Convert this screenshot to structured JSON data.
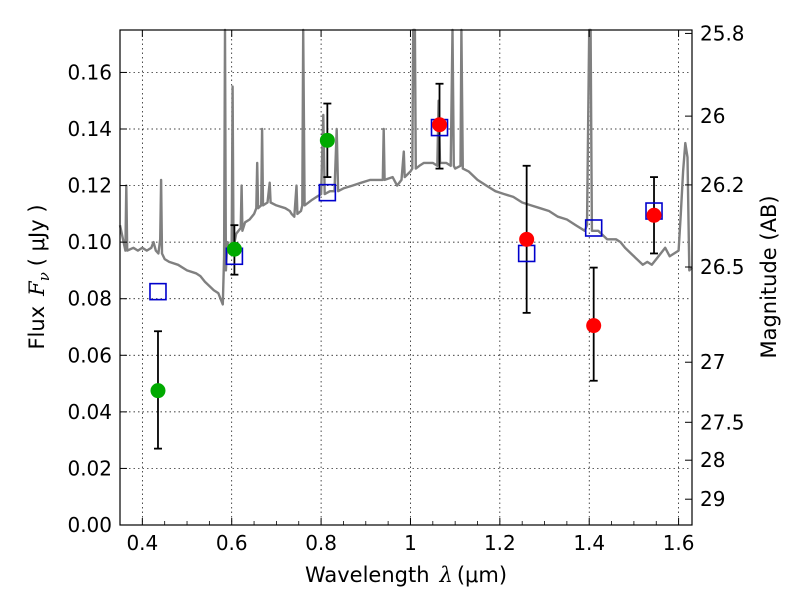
{
  "chart_data": {
    "type": "scatter",
    "xlabel_text": "Wavelength",
    "xlabel_symbol": "λ",
    "xlabel_unit": "(μm)",
    "ylabel_text": "Flux",
    "ylabel_symbol": "F",
    "ylabel_subscript": "ν",
    "ylabel_unit": "( μJy )",
    "ylabel_right": "Magnitude (AB)",
    "xlim": [
      0.35,
      1.63
    ],
    "ylim": [
      0.0,
      0.175
    ],
    "grid": true,
    "x_ticks": [
      {
        "value": 0.4,
        "label": "0.4"
      },
      {
        "value": 0.6,
        "label": "0.6"
      },
      {
        "value": 0.8,
        "label": "0.8"
      },
      {
        "value": 1.0,
        "label": "1"
      },
      {
        "value": 1.2,
        "label": "1.2"
      },
      {
        "value": 1.4,
        "label": "1.4"
      },
      {
        "value": 1.6,
        "label": "1.6"
      }
    ],
    "y_ticks": [
      {
        "value": 0.0,
        "label": "0.00"
      },
      {
        "value": 0.02,
        "label": "0.02"
      },
      {
        "value": 0.04,
        "label": "0.04"
      },
      {
        "value": 0.06,
        "label": "0.06"
      },
      {
        "value": 0.08,
        "label": "0.08"
      },
      {
        "value": 0.1,
        "label": "0.10"
      },
      {
        "value": 0.12,
        "label": "0.12"
      },
      {
        "value": 0.14,
        "label": "0.14"
      },
      {
        "value": 0.16,
        "label": "0.16"
      }
    ],
    "mag_ticks": [
      {
        "mag": 25.8,
        "label": "25.8"
      },
      {
        "mag": 26.0,
        "label": "26"
      },
      {
        "mag": 26.2,
        "label": "26.2"
      },
      {
        "mag": 26.5,
        "label": "26.5"
      },
      {
        "mag": 27.0,
        "label": "27"
      },
      {
        "mag": 27.5,
        "label": "27.5"
      },
      {
        "mag": 28.0,
        "label": "28"
      },
      {
        "mag": 29.0,
        "label": "29"
      }
    ],
    "colors": {
      "template": "#808080",
      "green": "#00aa00",
      "red": "#ff0000",
      "model": "#0000cc",
      "errorbar": "#000000"
    },
    "series": [
      {
        "style": "green-circle",
        "points": [
          {
            "x": 0.435,
            "y": 0.0475,
            "yerr_low": 0.027,
            "yerr_high": 0.0685
          },
          {
            "x": 0.606,
            "y": 0.0975,
            "yerr_low": 0.0885,
            "yerr_high": 0.106
          },
          {
            "x": 0.814,
            "y": 0.136,
            "yerr_low": 0.123,
            "yerr_high": 0.149
          }
        ]
      },
      {
        "style": "red-circle",
        "points": [
          {
            "x": 1.065,
            "y": 0.1415,
            "yerr_low": 0.126,
            "yerr_high": 0.156
          },
          {
            "x": 1.26,
            "y": 0.101,
            "yerr_low": 0.075,
            "yerr_high": 0.127
          },
          {
            "x": 1.41,
            "y": 0.0705,
            "yerr_low": 0.051,
            "yerr_high": 0.091
          },
          {
            "x": 1.545,
            "y": 0.1095,
            "yerr_low": 0.096,
            "yerr_high": 0.123
          }
        ]
      },
      {
        "style": "blue-square",
        "points": [
          {
            "x": 0.435,
            "y": 0.0825
          },
          {
            "x": 0.606,
            "y": 0.095
          },
          {
            "x": 0.814,
            "y": 0.1175
          },
          {
            "x": 1.065,
            "y": 0.1405
          },
          {
            "x": 1.26,
            "y": 0.096
          },
          {
            "x": 1.41,
            "y": 0.105
          },
          {
            "x": 1.545,
            "y": 0.111
          }
        ]
      },
      {
        "style": "gray-line",
        "points": [
          [
            0.35,
            0.106
          ],
          [
            0.358,
            0.1
          ],
          [
            0.362,
            0.097
          ],
          [
            0.364,
            0.12
          ],
          [
            0.366,
            0.097
          ],
          [
            0.38,
            0.098
          ],
          [
            0.39,
            0.097
          ],
          [
            0.4,
            0.098
          ],
          [
            0.41,
            0.097
          ],
          [
            0.42,
            0.098
          ],
          [
            0.425,
            0.1
          ],
          [
            0.43,
            0.097
          ],
          [
            0.436,
            0.096
          ],
          [
            0.44,
            0.101
          ],
          [
            0.442,
            0.122
          ],
          [
            0.444,
            0.096
          ],
          [
            0.45,
            0.094
          ],
          [
            0.46,
            0.093
          ],
          [
            0.48,
            0.092
          ],
          [
            0.5,
            0.09
          ],
          [
            0.52,
            0.089
          ],
          [
            0.53,
            0.088
          ],
          [
            0.54,
            0.086
          ],
          [
            0.56,
            0.083
          ],
          [
            0.57,
            0.082
          ],
          [
            0.575,
            0.08
          ],
          [
            0.58,
            0.078
          ],
          [
            0.583,
            0.095
          ],
          [
            0.585,
            0.175
          ],
          [
            0.587,
            0.09
          ],
          [
            0.59,
            0.1
          ],
          [
            0.595,
            0.097
          ],
          [
            0.6,
            0.1
          ],
          [
            0.602,
            0.155
          ],
          [
            0.604,
            0.098
          ],
          [
            0.61,
            0.103
          ],
          [
            0.62,
            0.105
          ],
          [
            0.622,
            0.12
          ],
          [
            0.624,
            0.104
          ],
          [
            0.63,
            0.107
          ],
          [
            0.64,
            0.108
          ],
          [
            0.65,
            0.11
          ],
          [
            0.655,
            0.112
          ],
          [
            0.657,
            0.128
          ],
          [
            0.659,
            0.112
          ],
          [
            0.666,
            0.113
          ],
          [
            0.668,
            0.14
          ],
          [
            0.67,
            0.113
          ],
          [
            0.68,
            0.114
          ],
          [
            0.685,
            0.121
          ],
          [
            0.687,
            0.114
          ],
          [
            0.7,
            0.113
          ],
          [
            0.72,
            0.112
          ],
          [
            0.73,
            0.111
          ],
          [
            0.734,
            0.11
          ],
          [
            0.74,
            0.109
          ],
          [
            0.745,
            0.12
          ],
          [
            0.747,
            0.11
          ],
          [
            0.755,
            0.111
          ],
          [
            0.758,
            0.113
          ],
          [
            0.76,
            0.175
          ],
          [
            0.763,
            0.113
          ],
          [
            0.78,
            0.115
          ],
          [
            0.79,
            0.116
          ],
          [
            0.8,
            0.117
          ],
          [
            0.805,
            0.145
          ],
          [
            0.808,
            0.117
          ],
          [
            0.82,
            0.118
          ],
          [
            0.83,
            0.118
          ],
          [
            0.835,
            0.14
          ],
          [
            0.838,
            0.118
          ],
          [
            0.85,
            0.119
          ],
          [
            0.87,
            0.12
          ],
          [
            0.89,
            0.121
          ],
          [
            0.91,
            0.122
          ],
          [
            0.93,
            0.122
          ],
          [
            0.938,
            0.122
          ],
          [
            0.94,
            0.14
          ],
          [
            0.942,
            0.122
          ],
          [
            0.96,
            0.123
          ],
          [
            0.97,
            0.12
          ],
          [
            0.98,
            0.122
          ],
          [
            0.985,
            0.132
          ],
          [
            0.987,
            0.123
          ],
          [
            1.0,
            0.125
          ],
          [
            1.004,
            0.126
          ],
          [
            1.006,
            0.175
          ],
          [
            1.01,
            0.175
          ],
          [
            1.012,
            0.126
          ],
          [
            1.02,
            0.127
          ],
          [
            1.03,
            0.128
          ],
          [
            1.05,
            0.128
          ],
          [
            1.06,
            0.127
          ],
          [
            1.063,
            0.15
          ],
          [
            1.066,
            0.128
          ],
          [
            1.08,
            0.128
          ],
          [
            1.09,
            0.127
          ],
          [
            1.094,
            0.175
          ],
          [
            1.097,
            0.127
          ],
          [
            1.1,
            0.126
          ],
          [
            1.112,
            0.127
          ],
          [
            1.114,
            0.175
          ],
          [
            1.117,
            0.126
          ],
          [
            1.13,
            0.125
          ],
          [
            1.15,
            0.122
          ],
          [
            1.17,
            0.12
          ],
          [
            1.19,
            0.118
          ],
          [
            1.21,
            0.117
          ],
          [
            1.23,
            0.116
          ],
          [
            1.25,
            0.114
          ],
          [
            1.27,
            0.113
          ],
          [
            1.29,
            0.112
          ],
          [
            1.31,
            0.111
          ],
          [
            1.33,
            0.109
          ],
          [
            1.35,
            0.108
          ],
          [
            1.37,
            0.106
          ],
          [
            1.39,
            0.104
          ],
          [
            1.395,
            0.106
          ],
          [
            1.4,
            0.175
          ],
          [
            1.403,
            0.175
          ],
          [
            1.406,
            0.104
          ],
          [
            1.42,
            0.104
          ],
          [
            1.44,
            0.101
          ],
          [
            1.46,
            0.101
          ],
          [
            1.47,
            0.1
          ],
          [
            1.48,
            0.098
          ],
          [
            1.5,
            0.095
          ],
          [
            1.52,
            0.092
          ],
          [
            1.53,
            0.093
          ],
          [
            1.54,
            0.092
          ],
          [
            1.55,
            0.094
          ],
          [
            1.56,
            0.096
          ],
          [
            1.57,
            0.098
          ],
          [
            1.58,
            0.095
          ],
          [
            1.6,
            0.097
          ],
          [
            1.605,
            0.11
          ],
          [
            1.61,
            0.125
          ],
          [
            1.615,
            0.135
          ],
          [
            1.62,
            0.13
          ],
          [
            1.624,
            0.09
          ],
          [
            1.63,
            0.091
          ]
        ]
      }
    ]
  }
}
